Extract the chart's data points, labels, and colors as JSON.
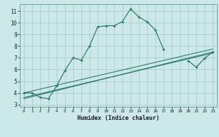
{
  "xlabel": "Humidex (Indice chaleur)",
  "bg_color": "#cce8e8",
  "grid_color": "#aacccc",
  "line_color": "#2a7a6a",
  "xlim": [
    -0.5,
    23.5
  ],
  "ylim": [
    2.8,
    11.6
  ],
  "xticks": [
    0,
    1,
    2,
    3,
    4,
    5,
    6,
    7,
    8,
    9,
    10,
    11,
    12,
    13,
    14,
    15,
    16,
    17,
    18,
    19,
    20,
    21,
    22,
    23
  ],
  "yticks": [
    3,
    4,
    5,
    6,
    7,
    8,
    9,
    10,
    11
  ],
  "main_x": [
    0,
    1,
    2,
    3,
    4,
    5,
    6,
    7,
    8,
    9,
    10,
    11,
    12,
    13,
    14,
    15,
    16,
    17,
    18,
    19,
    20,
    21,
    22,
    23
  ],
  "main_y": [
    4.0,
    4.0,
    3.6,
    3.5,
    4.6,
    5.9,
    7.0,
    6.8,
    8.0,
    9.65,
    9.75,
    9.75,
    10.1,
    11.2,
    10.5,
    10.1,
    9.4,
    7.75,
    null,
    null,
    6.75,
    6.2,
    6.95,
    7.5
  ],
  "line1_x": [
    0,
    23
  ],
  "line1_y": [
    4.0,
    7.75
  ],
  "line2_x": [
    0,
    23
  ],
  "line2_y": [
    3.5,
    7.5
  ],
  "line3_x": [
    0,
    23
  ],
  "line3_y": [
    3.6,
    7.4
  ]
}
